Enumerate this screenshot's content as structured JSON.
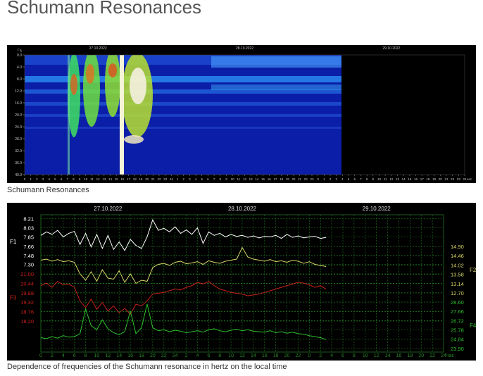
{
  "title": "Schumann Resonances",
  "chart_data": [
    {
      "type": "spectrogram",
      "y_label": "Гц",
      "ylim": [
        0,
        40
      ],
      "y_reversed": true,
      "yticks": [
        {
          "value": 0,
          "label": "0.0"
        },
        {
          "value": 4,
          "label": "4.0"
        },
        {
          "value": 8,
          "label": "8.0"
        },
        {
          "value": 12,
          "label": "12.0"
        },
        {
          "value": 16,
          "label": "16.0"
        },
        {
          "value": 20,
          "label": "20.0"
        },
        {
          "value": 24,
          "label": "24.0"
        },
        {
          "value": 28,
          "label": "28.0"
        },
        {
          "value": 32,
          "label": "32.0"
        },
        {
          "value": 36,
          "label": "36.0"
        },
        {
          "value": 40,
          "label": "40.0"
        }
      ],
      "xlim": [
        0,
        72
      ],
      "xticks": [
        0,
        1,
        2,
        3,
        4,
        5,
        6,
        7,
        8,
        9,
        10,
        11,
        12,
        13,
        14,
        15,
        16,
        17,
        18,
        19,
        20,
        21,
        22,
        23,
        24,
        {
          "value": 25,
          "label": "1"
        },
        {
          "value": 26,
          "label": "2"
        },
        {
          "value": 27,
          "label": "3"
        },
        {
          "value": 28,
          "label": "4"
        },
        {
          "value": 29,
          "label": "5"
        },
        {
          "value": 30,
          "label": "6"
        },
        {
          "value": 31,
          "label": "7"
        },
        {
          "value": 32,
          "label": "8"
        },
        {
          "value": 33,
          "label": "9"
        },
        {
          "value": 34,
          "label": "10"
        },
        {
          "value": 35,
          "label": "11"
        },
        {
          "value": 36,
          "label": "12"
        },
        {
          "value": 37,
          "label": "13"
        },
        {
          "value": 38,
          "label": "14"
        },
        {
          "value": 39,
          "label": "15"
        },
        {
          "value": 40,
          "label": "16"
        },
        {
          "value": 41,
          "label": "17"
        },
        {
          "value": 42,
          "label": "18"
        },
        {
          "value": 43,
          "label": "19"
        },
        {
          "value": 44,
          "label": "20"
        },
        {
          "value": 45,
          "label": "21"
        },
        {
          "value": 46,
          "label": "22"
        },
        {
          "value": 47,
          "label": "23"
        },
        {
          "value": 48,
          "label": "0"
        },
        {
          "value": 49,
          "label": "1"
        },
        {
          "value": 50,
          "label": "2"
        },
        {
          "value": 51,
          "label": "3"
        },
        {
          "value": 52,
          "label": "4"
        },
        {
          "value": 53,
          "label": "5"
        },
        {
          "value": 54,
          "label": "6"
        },
        {
          "value": 55,
          "label": "7"
        },
        {
          "value": 56,
          "label": "8"
        },
        {
          "value": 57,
          "label": "9"
        },
        {
          "value": 58,
          "label": "10"
        },
        {
          "value": 59,
          "label": "11"
        },
        {
          "value": 60,
          "label": "12"
        },
        {
          "value": 61,
          "label": "13"
        },
        {
          "value": 62,
          "label": "14"
        },
        {
          "value": 63,
          "label": "15"
        },
        {
          "value": 64,
          "label": "16"
        },
        {
          "value": 65,
          "label": "17"
        },
        {
          "value": 66,
          "label": "18"
        },
        {
          "value": 67,
          "label": "19"
        },
        {
          "value": 68,
          "label": "20"
        },
        {
          "value": 69,
          "label": "21"
        },
        {
          "value": 70,
          "label": "22"
        },
        {
          "value": 71,
          "label": "23"
        },
        {
          "value": 72,
          "label": "24"
        }
      ],
      "x_unit": "час",
      "date_labels": [
        {
          "value": 12,
          "label": "27.10.2022"
        },
        {
          "value": 36,
          "label": "28.10.2022"
        },
        {
          "value": 60,
          "label": "29.10.2022"
        }
      ],
      "caption": "Schumann Resonances"
    },
    {
      "type": "line",
      "grid": true,
      "xlim": [
        0,
        72
      ],
      "xticks": [
        0,
        2,
        4,
        6,
        8,
        10,
        12,
        14,
        16,
        18,
        20,
        22,
        24,
        {
          "value": 26,
          "label": "2"
        },
        {
          "value": 28,
          "label": "4"
        },
        {
          "value": 30,
          "label": "6"
        },
        {
          "value": 32,
          "label": "8"
        },
        {
          "value": 34,
          "label": "10"
        },
        {
          "value": 36,
          "label": "12"
        },
        {
          "value": 38,
          "label": "14"
        },
        {
          "value": 40,
          "label": "16"
        },
        {
          "value": 42,
          "label": "18"
        },
        {
          "value": 44,
          "label": "20"
        },
        {
          "value": 46,
          "label": "22"
        },
        {
          "value": 48,
          "label": "0"
        },
        {
          "value": 50,
          "label": "2"
        },
        {
          "value": 52,
          "label": "4"
        },
        {
          "value": 54,
          "label": "6"
        },
        {
          "value": 56,
          "label": "8"
        },
        {
          "value": 58,
          "label": "10"
        },
        {
          "value": 60,
          "label": "12"
        },
        {
          "value": 62,
          "label": "14"
        },
        {
          "value": 64,
          "label": "16"
        },
        {
          "value": 66,
          "label": "18"
        },
        {
          "value": 68,
          "label": "20"
        },
        {
          "value": 70,
          "label": "22"
        },
        {
          "value": 72,
          "label": "24"
        }
      ],
      "x_unit": "час",
      "date_labels": [
        {
          "value": 12,
          "label": "27.10.2022"
        },
        {
          "value": 36,
          "label": "28.10.2022"
        },
        {
          "value": 60,
          "label": "29.10.2022"
        }
      ],
      "x": [
        0,
        1,
        2,
        3,
        4,
        5,
        6,
        7,
        8,
        9,
        10,
        11,
        12,
        13,
        14,
        15,
        16,
        17,
        18,
        19,
        20,
        21,
        22,
        23,
        24,
        25,
        26,
        27,
        28,
        29,
        30,
        31,
        32,
        33,
        34,
        35,
        36,
        37,
        38,
        39,
        40,
        41,
        42,
        43,
        44,
        45,
        46,
        47,
        48,
        49,
        50,
        51
      ],
      "series": [
        {
          "name": "F1",
          "color": "#ffffff",
          "axis_side": "left",
          "ylim": [
            5.56,
            8.29
          ],
          "yticks": [
            8.21,
            8.03,
            7.85,
            7.66,
            7.48,
            {
              "value": 7.3,
              "label": "7.30"
            }
          ],
          "values": [
            7.88,
            7.95,
            7.9,
            7.98,
            7.85,
            7.92,
            7.96,
            7.7,
            7.92,
            7.65,
            7.9,
            7.62,
            7.88,
            7.6,
            7.75,
            7.58,
            7.8,
            7.68,
            7.62,
            7.85,
            8.19,
            7.98,
            8.02,
            7.95,
            8.05,
            7.92,
            7.99,
            7.9,
            8.03,
            7.72,
            7.95,
            7.88,
            7.92,
            7.85,
            7.9,
            7.86,
            7.88,
            7.84,
            7.87,
            7.83,
            7.86,
            7.85,
            7.88,
            7.82,
            7.9,
            7.84,
            7.87,
            7.83,
            7.85,
            7.86,
            7.82,
            7.84
          ]
        },
        {
          "name": "F2",
          "color": "#d8d86a",
          "axis_side": "right",
          "ylim": [
            9.9,
            16.4
          ],
          "yticks": [
            {
              "value": 14.9,
              "label": "14.90"
            },
            14.46,
            14.02,
            13.58,
            13.14,
            {
              "value": 12.7,
              "label": "12.70"
            }
          ],
          "values": [
            14.25,
            14.3,
            14.2,
            14.28,
            14.18,
            14.22,
            14.15,
            13.6,
            13.3,
            13.7,
            13.25,
            13.8,
            13.4,
            13.35,
            13.75,
            13.2,
            13.6,
            13.15,
            13.3,
            13.25,
            13.9,
            14.05,
            14.1,
            14.0,
            14.15,
            14.2,
            14.08,
            14.12,
            14.18,
            14.05,
            14.22,
            14.15,
            14.1,
            14.2,
            14.25,
            14.3,
            14.85,
            14.4,
            14.3,
            14.25,
            14.2,
            14.28,
            14.18,
            14.22,
            14.15,
            14.25,
            14.2,
            14.1,
            14.18,
            14.05,
            14.0,
            13.95
          ]
        },
        {
          "name": "F3",
          "color": "#c8201a",
          "axis_side": "left",
          "ylim": [
            16.36,
            24.51
          ],
          "yticks": [
            {
              "value": 21,
              "label": "21.00"
            },
            20.44,
            19.88,
            19.32,
            18.76,
            {
              "value": 18.2,
              "label": "18.20"
            }
          ],
          "values": [
            20.3,
            20.45,
            20.2,
            20.55,
            20.35,
            20.4,
            20.2,
            19.4,
            19.0,
            19.5,
            18.9,
            19.3,
            18.8,
            19.1,
            18.7,
            18.95,
            18.6,
            19.2,
            19.1,
            19.4,
            19.8,
            19.85,
            19.9,
            20.0,
            20.1,
            20.05,
            20.2,
            20.3,
            20.5,
            20.4,
            20.55,
            20.3,
            20.1,
            20.0,
            19.9,
            19.85,
            19.8,
            19.7,
            19.75,
            19.8,
            19.9,
            20.0,
            20.1,
            20.2,
            20.3,
            20.4,
            20.5,
            20.45,
            20.35,
            20.2,
            20.3,
            20.1
          ]
        },
        {
          "name": "F4",
          "color": "#2ec02e",
          "axis_side": "right",
          "ylim": [
            23.54,
            37.43
          ],
          "yticks": [
            {
              "value": 28.6,
              "label": "28.60"
            },
            27.66,
            26.72,
            25.78,
            24.84,
            {
              "value": 23.9,
              "label": "23.90"
            }
          ],
          "values": [
            25.0,
            24.9,
            25.1,
            24.95,
            25.2,
            25.05,
            25.1,
            25.4,
            27.9,
            26.2,
            25.8,
            26.8,
            25.9,
            25.5,
            25.3,
            25.6,
            27.7,
            25.4,
            26.0,
            28.4,
            26.0,
            25.7,
            25.8,
            25.6,
            25.75,
            25.65,
            25.5,
            25.6,
            25.7,
            25.55,
            25.8,
            25.9,
            25.7,
            25.6,
            25.75,
            25.85,
            25.7,
            25.8,
            25.65,
            25.6,
            25.55,
            25.7,
            25.5,
            25.6,
            25.45,
            25.55,
            25.4,
            25.35,
            25.2,
            25.1,
            25.0,
            24.8
          ]
        }
      ],
      "caption": "Dependence of frequencies of the Schumann resonance in hertz on the local time"
    }
  ]
}
